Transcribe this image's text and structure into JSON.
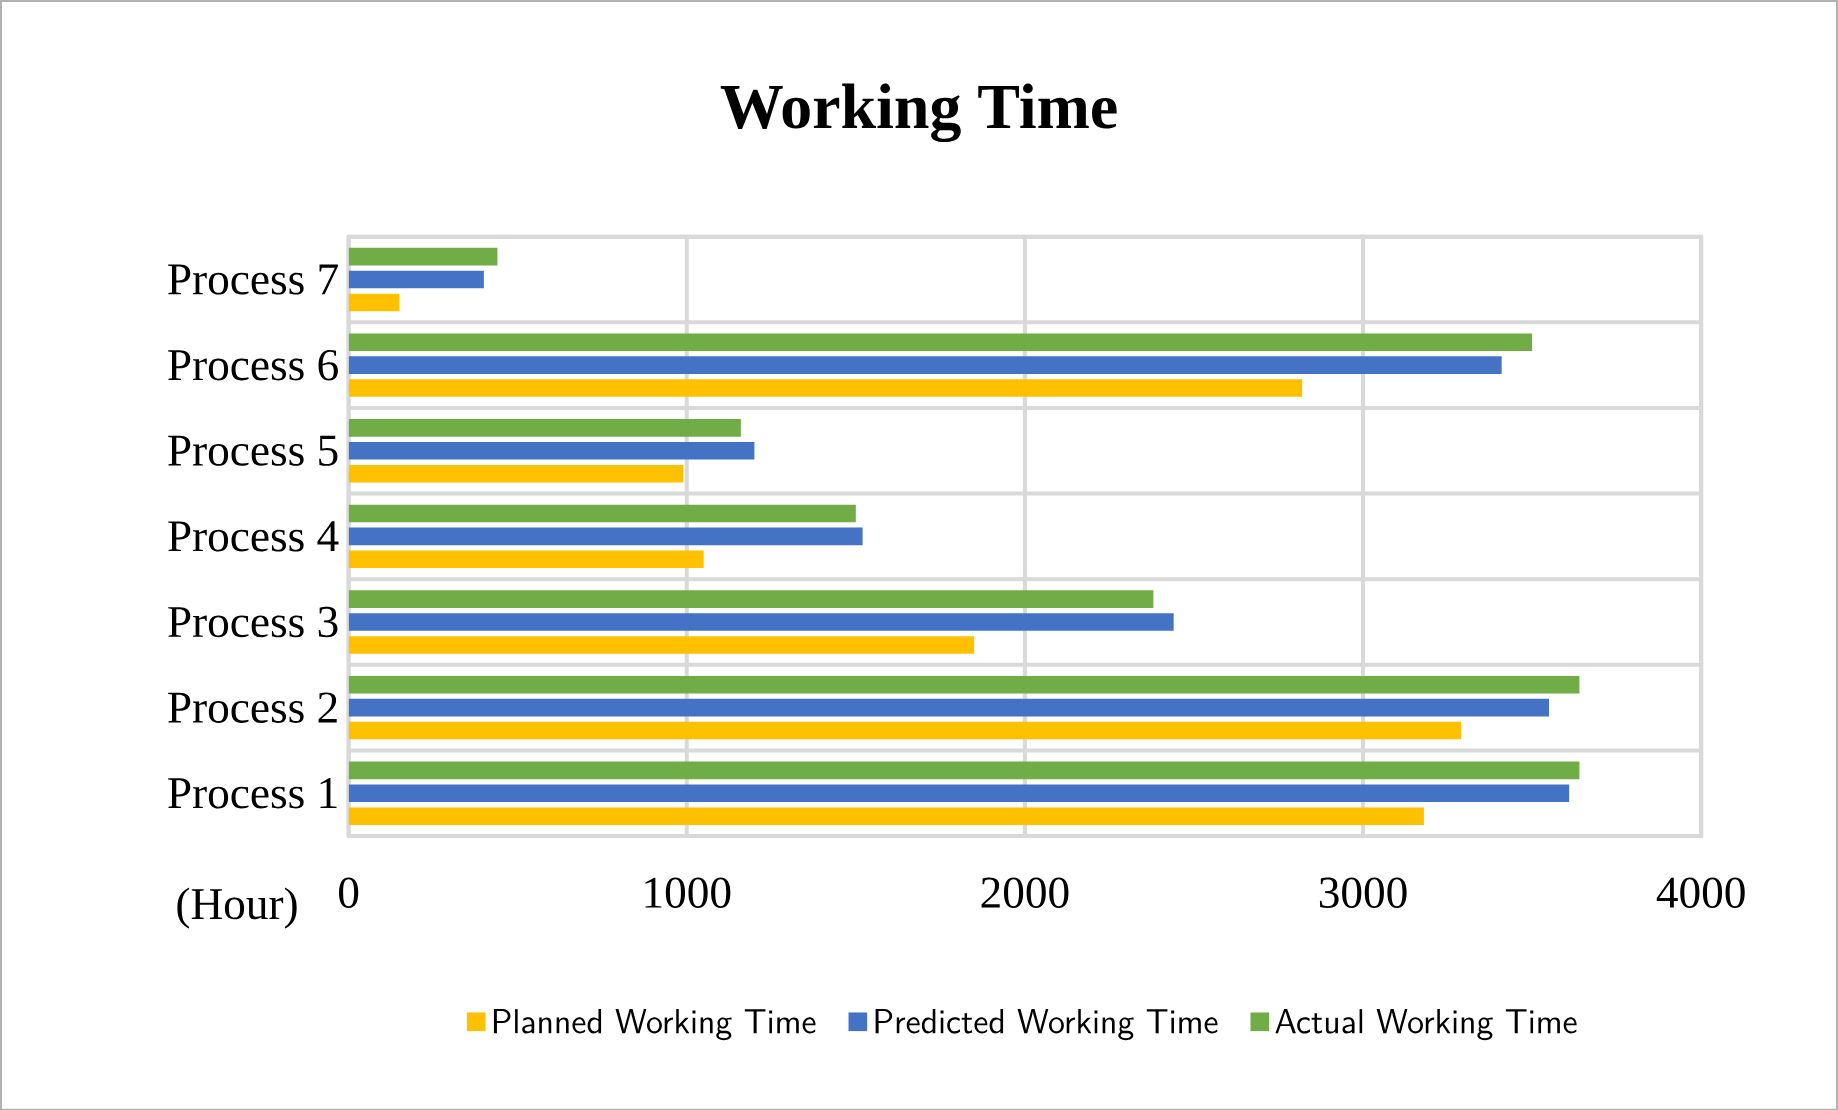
{
  "chart_data": {
    "type": "bar",
    "orientation": "horizontal",
    "title": "Working Time",
    "xlabel": "(Hour)",
    "categories": [
      "Process 7",
      "Process 6",
      "Process 5",
      "Process 4",
      "Process 3",
      "Process 2",
      "Process 1"
    ],
    "series": [
      {
        "name": "Planned Working Time",
        "color": "#ffc000",
        "values": [
          150,
          2820,
          990,
          1050,
          1850,
          3290,
          3180
        ]
      },
      {
        "name": "Predicted Working Time",
        "color": "#4472c4",
        "values": [
          400,
          3410,
          1200,
          1520,
          2440,
          3550,
          3610
        ]
      },
      {
        "name": "Actual Working Time",
        "color": "#70ad47",
        "values": [
          440,
          3500,
          1160,
          1500,
          2380,
          3640,
          3640
        ]
      }
    ],
    "xlim": [
      0,
      4000
    ],
    "xticks": [
      0,
      1000,
      2000,
      3000,
      4000
    ],
    "grid": true,
    "legend": "bottom"
  }
}
